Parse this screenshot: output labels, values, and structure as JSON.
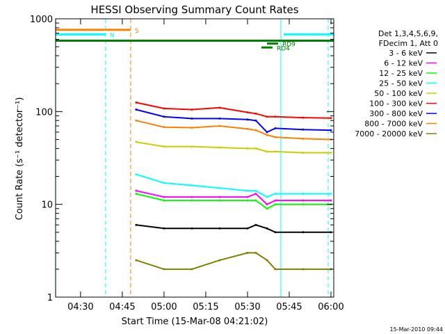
{
  "chart_data": {
    "type": "line",
    "title": "HESSI Observing Summary Count Rates",
    "xlabel": "Start Time (15-Mar-08 04:21:02)",
    "ylabel": "Count Rate (s⁻¹ detector⁻¹)",
    "y_scale": "log",
    "ylim": [
      1,
      1000
    ],
    "x_range_minutes": [
      "04:21",
      "06:01"
    ],
    "x_ticks": [
      "04:30",
      "04:45",
      "05:00",
      "05:15",
      "05:30",
      "05:45",
      "06:00"
    ],
    "y_ticks": [
      "1",
      "10",
      "100",
      "1000"
    ],
    "grid": false,
    "legend_position": "right",
    "legend_header": [
      "Det 1,3,4,5,6,9,",
      "FDecim 1, Att 0"
    ],
    "series": [
      {
        "name": "3 - 6 keV",
        "color": "#000000",
        "x": [
          "04:50",
          "05:00",
          "05:10",
          "05:20",
          "05:30",
          "05:33",
          "05:37",
          "05:40",
          "05:50",
          "06:00"
        ],
        "y": [
          6,
          5.5,
          5.5,
          5.5,
          5.5,
          6,
          5.5,
          5,
          5,
          5
        ]
      },
      {
        "name": "6 - 12 keV",
        "color": "#ff00ff",
        "x": [
          "04:50",
          "05:00",
          "05:10",
          "05:20",
          "05:30",
          "05:33",
          "05:37",
          "05:40",
          "05:50",
          "06:00"
        ],
        "y": [
          14,
          12,
          12,
          12,
          12,
          13,
          10,
          11,
          11,
          11
        ]
      },
      {
        "name": "12 - 25 keV",
        "color": "#00ff00",
        "x": [
          "04:50",
          "05:00",
          "05:10",
          "05:20",
          "05:30",
          "05:33",
          "05:37",
          "05:40",
          "05:50",
          "06:00"
        ],
        "y": [
          13,
          11,
          11,
          11,
          11,
          11,
          9,
          10,
          10,
          10
        ]
      },
      {
        "name": "25 - 50 keV",
        "color": "#00ffff",
        "x": [
          "04:50",
          "05:00",
          "05:10",
          "05:20",
          "05:30",
          "05:33",
          "05:37",
          "05:40",
          "05:50",
          "06:00"
        ],
        "y": [
          21,
          17,
          16,
          15,
          14,
          14,
          12,
          13,
          13,
          13
        ]
      },
      {
        "name": "50 - 100 keV",
        "color": "#cccc00",
        "x": [
          "04:50",
          "05:00",
          "05:10",
          "05:20",
          "05:30",
          "05:33",
          "05:37",
          "05:40",
          "05:50",
          "06:00"
        ],
        "y": [
          47,
          42,
          42,
          41,
          40,
          40,
          37,
          37,
          36,
          36
        ]
      },
      {
        "name": "100 - 300 keV",
        "color": "#ff0000",
        "x": [
          "04:50",
          "05:00",
          "05:10",
          "05:20",
          "05:30",
          "05:33",
          "05:37",
          "05:40",
          "05:50",
          "06:00"
        ],
        "y": [
          125,
          108,
          105,
          110,
          98,
          95,
          88,
          88,
          86,
          85
        ]
      },
      {
        "name": "300 - 800 keV",
        "color": "#0000ff",
        "x": [
          "04:50",
          "05:00",
          "05:10",
          "05:20",
          "05:30",
          "05:33",
          "05:37",
          "05:40",
          "05:50",
          "06:00"
        ],
        "y": [
          105,
          88,
          84,
          84,
          82,
          80,
          60,
          66,
          64,
          63
        ]
      },
      {
        "name": "800 - 7000 keV",
        "color": "#ff8000",
        "x": [
          "04:50",
          "05:00",
          "05:10",
          "05:20",
          "05:30",
          "05:33",
          "05:37",
          "05:40",
          "05:50",
          "06:00"
        ],
        "y": [
          80,
          68,
          67,
          70,
          65,
          63,
          56,
          53,
          51,
          50
        ]
      },
      {
        "name": "7000 - 20000 keV",
        "color": "#808000",
        "x": [
          "04:50",
          "05:00",
          "05:10",
          "05:20",
          "05:30",
          "05:33",
          "05:37",
          "05:40",
          "05:50",
          "06:00"
        ],
        "y": [
          2.5,
          2,
          2,
          2.5,
          3,
          3,
          2.5,
          2,
          2,
          2
        ]
      }
    ],
    "flags": [
      {
        "label": "S",
        "color": "#ff8000",
        "y": 760,
        "x_start": "04:21",
        "x_end": "04:48"
      },
      {
        "label": "N",
        "color": "#00ffff",
        "y": 680,
        "x_start": "04:21",
        "x_end": "04:39"
      },
      {
        "label": "",
        "color": "#00ffff",
        "y": 680,
        "x_start": "05:43",
        "x_end": "06:01"
      },
      {
        "label": "",
        "color": "#008000",
        "y": 580,
        "x_start": "04:21",
        "x_end": "06:01"
      },
      {
        "label": "RD9",
        "color": "#008000",
        "y": 540,
        "x_start": "05:37",
        "x_end": "05:41"
      },
      {
        "label": "RD4",
        "color": "#008000",
        "y": 490,
        "x_start": "05:35",
        "x_end": "05:39"
      }
    ],
    "vlines": [
      {
        "x": "04:21",
        "color": "#00ffff",
        "style": "solid"
      },
      {
        "x": "04:39",
        "color": "#00ffff",
        "style": "dashed"
      },
      {
        "x": "04:48",
        "color": "#ff8000",
        "style": "dashed"
      },
      {
        "x": "05:42",
        "color": "#00ffff",
        "style": "solid"
      },
      {
        "x": "05:59",
        "color": "#00ffff",
        "style": "dashed"
      }
    ],
    "footer_stamp": "15-Mar-2010 09:44"
  }
}
